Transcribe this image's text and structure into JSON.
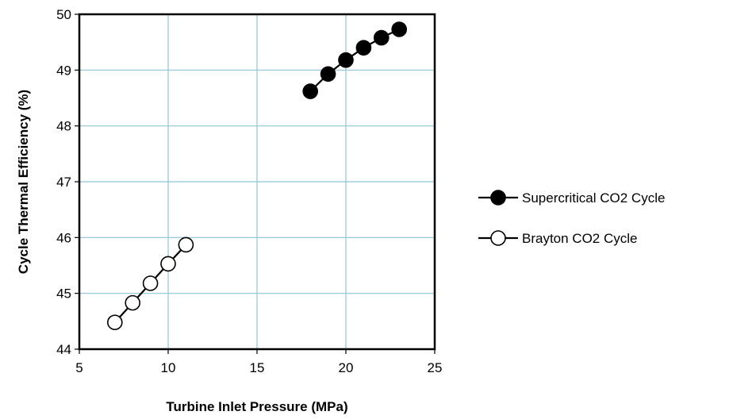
{
  "chart_data": {
    "type": "scatter",
    "xlabel": "Turbine Inlet Pressure (MPa)",
    "ylabel": "Cycle Thermal Efficiency (%)",
    "xlim": [
      5,
      25
    ],
    "ylim": [
      44,
      50
    ],
    "xticks": [
      5,
      10,
      15,
      20,
      25
    ],
    "yticks": [
      44,
      45,
      46,
      47,
      48,
      49,
      50
    ],
    "grid": true,
    "legend_position": "right",
    "series": [
      {
        "name": "Supercritical CO2 Cycle",
        "marker": "filled-circle",
        "color": "#000000",
        "points": [
          {
            "x": 18,
            "y": 48.62
          },
          {
            "x": 19,
            "y": 48.93
          },
          {
            "x": 20,
            "y": 49.18
          },
          {
            "x": 21,
            "y": 49.4
          },
          {
            "x": 22,
            "y": 49.58
          },
          {
            "x": 23,
            "y": 49.73
          }
        ]
      },
      {
        "name": "Brayton CO2 Cycle",
        "marker": "open-circle",
        "color": "#000000",
        "points": [
          {
            "x": 7,
            "y": 44.48
          },
          {
            "x": 8,
            "y": 44.83
          },
          {
            "x": 9,
            "y": 45.18
          },
          {
            "x": 10,
            "y": 45.53
          },
          {
            "x": 11,
            "y": 45.87
          }
        ]
      }
    ]
  }
}
